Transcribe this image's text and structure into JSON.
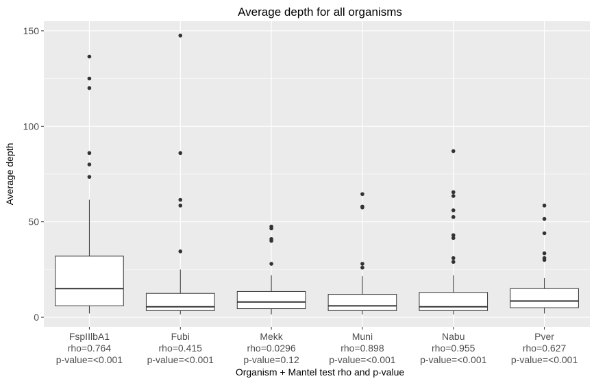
{
  "chart_data": {
    "type": "boxplot",
    "title": "Average depth for all organisms",
    "xlabel": "Organism + Mantel test rho and p-value",
    "ylabel": "Average depth",
    "ylim": [
      -5,
      155
    ],
    "yticks": [
      0,
      50,
      100,
      150
    ],
    "grid": true,
    "categories": [
      {
        "organism": "FspIIlbA1",
        "rho": "rho=0.764",
        "pvalue": "p-value=<0.001"
      },
      {
        "organism": "Fubi",
        "rho": "rho=0.415",
        "pvalue": "p-value=<0.001"
      },
      {
        "organism": "Mekk",
        "rho": "rho=0.0296",
        "pvalue": "p-value=0.12"
      },
      {
        "organism": "Muni",
        "rho": "rho=0.898",
        "pvalue": "p-value=<0.001"
      },
      {
        "organism": "Nabu",
        "rho": "rho=0.955",
        "pvalue": "p-value=<0.001"
      },
      {
        "organism": "Pver",
        "rho": "rho=0.627",
        "pvalue": "p-value=<0.001"
      }
    ],
    "boxes": [
      {
        "whisker_low": 2,
        "q1": 6,
        "median": 15,
        "q3": 32,
        "whisker_high": 61.5,
        "outliers": [
          136.5,
          125,
          120,
          86,
          80,
          73.5
        ]
      },
      {
        "whisker_low": 1.5,
        "q1": 3.5,
        "median": 5.5,
        "q3": 12.5,
        "whisker_high": 25,
        "outliers": [
          147.5,
          86,
          61.5,
          58.5,
          34.5
        ]
      },
      {
        "whisker_low": 1.5,
        "q1": 4.5,
        "median": 8,
        "q3": 13.5,
        "whisker_high": 22,
        "outliers": [
          47.5,
          46.5,
          41,
          40,
          28
        ]
      },
      {
        "whisker_low": 1.5,
        "q1": 3.5,
        "median": 6,
        "q3": 12,
        "whisker_high": 21.5,
        "outliers": [
          64.5,
          58,
          57.5,
          28,
          26
        ]
      },
      {
        "whisker_low": 1.5,
        "q1": 3.5,
        "median": 5.5,
        "q3": 13,
        "whisker_high": 22,
        "outliers": [
          87,
          65.5,
          63.5,
          56,
          52.5,
          43,
          41.5,
          31,
          29
        ]
      },
      {
        "whisker_low": 2,
        "q1": 5,
        "median": 8.5,
        "q3": 15,
        "whisker_high": 20.5,
        "outliers": [
          58.5,
          51.5,
          44,
          33.5,
          31,
          30
        ]
      }
    ],
    "colors": {
      "panel": "#ebebeb",
      "grid": "#ffffff",
      "box_fill": "#ffffff",
      "line": "#333333",
      "outlier": "#333333"
    }
  }
}
